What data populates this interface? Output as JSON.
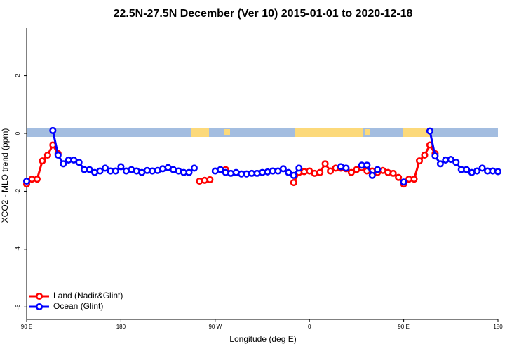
{
  "chart_data": {
    "type": "line",
    "title": "22.5N-27.5N December (Ver 10)   2015-01-01 to 2020-12-18",
    "xlabel": "Longitude (deg E)",
    "ylabel": "XCO2 - MLO trend (ppm)",
    "xlim": [
      90,
      540
    ],
    "ylim": [
      -6.43,
      3.64
    ],
    "xticks": [
      {
        "value": 90,
        "label": "90 E"
      },
      180,
      {
        "value": 270,
        "label": "90 W"
      },
      {
        "value": 360,
        "label": "0"
      },
      {
        "value": 450,
        "label": "90 E"
      },
      {
        "value": 540,
        "label": "180"
      }
    ],
    "yticks": [
      2,
      0,
      -2,
      -4,
      -6
    ],
    "legend": "bottom-left",
    "x": [
      90,
      95,
      100,
      105,
      110,
      115,
      120,
      125,
      130,
      135,
      140,
      145,
      150,
      155,
      160,
      165,
      170,
      175,
      180,
      185,
      190,
      195,
      200,
      205,
      210,
      215,
      220,
      225,
      230,
      235,
      240,
      245,
      250,
      255,
      260,
      265,
      270,
      275,
      280,
      285,
      290,
      295,
      300,
      305,
      310,
      315,
      320,
      325,
      330,
      335,
      340,
      345,
      350,
      355,
      360,
      365,
      370,
      375,
      380,
      385,
      390,
      395,
      400,
      405,
      410,
      415,
      420,
      425,
      430,
      435,
      440,
      445,
      450,
      455,
      460,
      465,
      470,
      475,
      480,
      485,
      490,
      495,
      500,
      505,
      510,
      515,
      520,
      525,
      530,
      535,
      540
    ],
    "series": [
      {
        "name": "Land (Nadir&Glint)",
        "color": "#ff0000",
        "values": [
          -1.75,
          -1.58,
          -1.58,
          -0.95,
          -0.75,
          -0.4,
          -0.7,
          null,
          null,
          null,
          null,
          null,
          null,
          null,
          null,
          null,
          null,
          null,
          null,
          null,
          null,
          null,
          null,
          null,
          null,
          null,
          null,
          null,
          null,
          null,
          null,
          null,
          null,
          -1.65,
          -1.62,
          -1.6,
          null,
          null,
          -1.25,
          null,
          null,
          null,
          null,
          null,
          null,
          null,
          null,
          null,
          null,
          null,
          null,
          -1.7,
          -1.35,
          -1.32,
          -1.3,
          -1.38,
          -1.35,
          -1.05,
          -1.3,
          -1.2,
          -1.2,
          -1.22,
          -1.35,
          -1.25,
          -1.18,
          -1.3,
          -1.3,
          -1.35,
          -1.28,
          -1.35,
          -1.38,
          -1.52,
          -1.75,
          -1.58,
          -1.58,
          -0.95,
          -0.75,
          -0.4,
          -0.7,
          null,
          null,
          null,
          null,
          null,
          null,
          null,
          null,
          null,
          null,
          null,
          null
        ]
      },
      {
        "name": "Ocean (Glint)",
        "color": "#0000ff",
        "values": [
          -1.65,
          null,
          null,
          null,
          null,
          0.1,
          -0.75,
          -1.05,
          -0.92,
          -0.92,
          -1.0,
          -1.25,
          -1.25,
          -1.35,
          -1.3,
          -1.2,
          -1.3,
          -1.3,
          -1.15,
          -1.3,
          -1.25,
          -1.3,
          -1.35,
          -1.28,
          -1.3,
          -1.28,
          -1.22,
          -1.18,
          -1.25,
          -1.3,
          -1.35,
          -1.35,
          -1.2,
          null,
          null,
          null,
          -1.3,
          -1.25,
          -1.35,
          -1.38,
          -1.35,
          -1.4,
          -1.4,
          -1.38,
          -1.38,
          -1.35,
          -1.33,
          -1.3,
          -1.3,
          -1.22,
          -1.35,
          -1.45,
          -1.2,
          null,
          null,
          null,
          null,
          null,
          null,
          null,
          -1.15,
          -1.2,
          null,
          null,
          -1.1,
          -1.1,
          -1.45,
          -1.25,
          null,
          null,
          null,
          null,
          -1.68,
          null,
          null,
          null,
          null,
          0.08,
          -0.78,
          -1.05,
          -0.92,
          -0.9,
          -1.0,
          -1.25,
          -1.25,
          -1.35,
          -1.3,
          -1.2,
          -1.3,
          -1.3,
          -1.32
        ]
      }
    ]
  }
}
